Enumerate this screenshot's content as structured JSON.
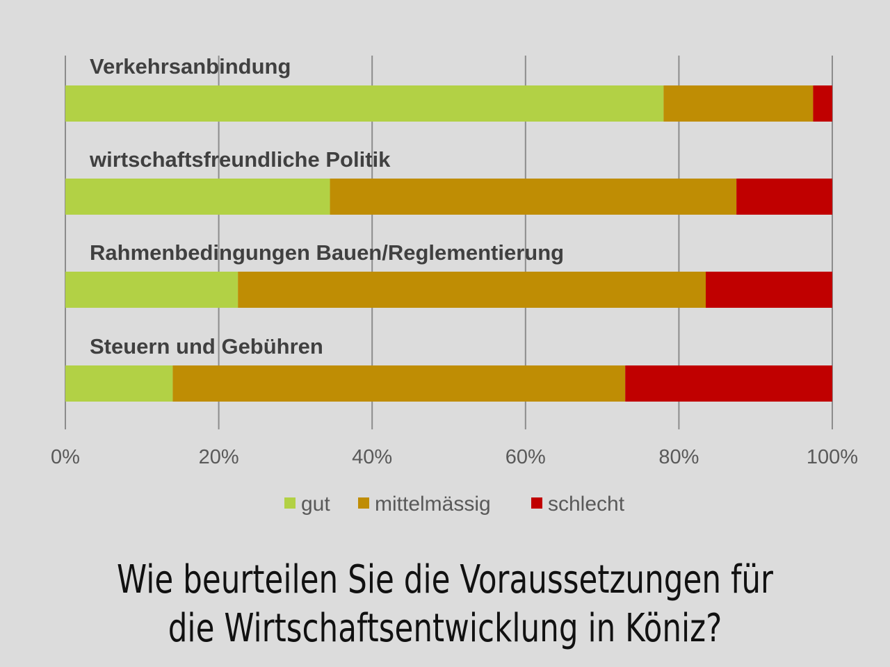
{
  "caption": {
    "line1": "Wie beurteilen Sie die Voraussetzungen für",
    "line2": "die Wirtschaftsentwicklung in Köniz?"
  },
  "colors": {
    "background": "#dcdcdc",
    "gut": "#b2d145",
    "mittelmaessig": "#bf8d04",
    "schlecht": "#c00000",
    "grid": "#8c8c8c"
  },
  "chart_data": {
    "type": "bar",
    "orientation": "horizontal",
    "stacked": "percent",
    "categories": [
      "Verkehrsanbindung",
      "wirtschaftsfreundliche Politik",
      "Rahmenbedingungen Bauen/Reglementierung",
      "Steuern und Gebühren"
    ],
    "series": [
      {
        "name": "gut",
        "color": "#b2d145",
        "values": [
          78,
          34.5,
          22.5,
          14
        ]
      },
      {
        "name": "mittelmässig",
        "color": "#bf8d04",
        "values": [
          19.5,
          53,
          61,
          59
        ]
      },
      {
        "name": "schlecht",
        "color": "#c00000",
        "values": [
          2.5,
          12.5,
          16.5,
          27
        ]
      }
    ],
    "xlim": [
      0,
      100
    ],
    "xticks": [
      "0%",
      "20%",
      "40%",
      "60%",
      "80%",
      "100%"
    ],
    "grid": true,
    "legend_position": "bottom",
    "title": "",
    "xlabel": "",
    "ylabel": ""
  }
}
